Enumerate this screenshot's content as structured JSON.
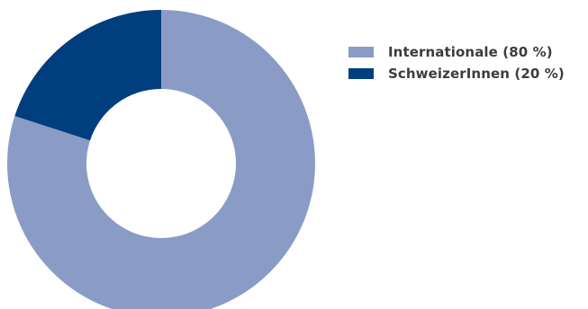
{
  "chart_data": {
    "type": "pie",
    "donut": true,
    "categories": [
      "Internationale (80 %)",
      "SchweizerInnen (20 %)"
    ],
    "values": [
      80,
      20
    ],
    "colors": [
      "#8a9cc6",
      "#003e7e"
    ],
    "legend": "right",
    "title": ""
  }
}
